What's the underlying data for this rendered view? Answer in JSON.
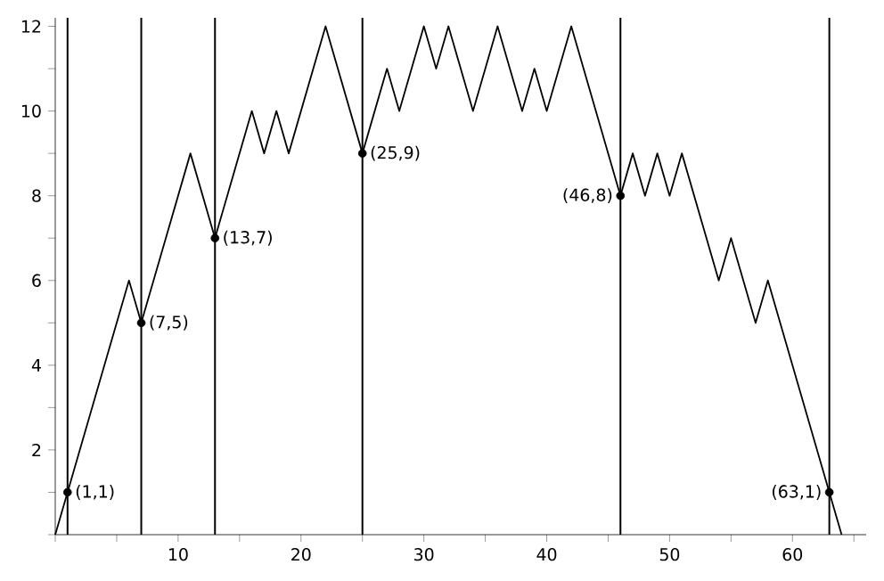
{
  "chart_data": {
    "type": "line",
    "xlim": [
      0,
      66
    ],
    "ylim": [
      0,
      12.2
    ],
    "xticks": [
      {
        "value": 0,
        "label": null
      },
      {
        "value": 5,
        "label": null
      },
      10,
      {
        "value": 15,
        "label": null
      },
      20,
      {
        "value": 25,
        "label": null
      },
      30,
      {
        "value": 35,
        "label": null
      },
      40,
      {
        "value": 45,
        "label": null
      },
      50,
      {
        "value": 55,
        "label": null
      },
      60,
      {
        "value": 65,
        "label": null
      }
    ],
    "yticks": [
      {
        "value": 0,
        "label": null
      },
      {
        "value": 1,
        "label": null
      },
      2,
      {
        "value": 3,
        "label": null
      },
      4,
      {
        "value": 5,
        "label": null
      },
      6,
      {
        "value": 7,
        "label": null
      },
      8,
      {
        "value": 9,
        "label": null
      },
      10,
      {
        "value": 11,
        "label": null
      },
      12
    ],
    "series": [
      {
        "color": "#000000",
        "marker": "none",
        "x": [
          0,
          6,
          7,
          11,
          13,
          16,
          17,
          18,
          19,
          22,
          25,
          27,
          28,
          30,
          31,
          32,
          34,
          36,
          38,
          39,
          40,
          42,
          46,
          47,
          48,
          49,
          50,
          51,
          54,
          55,
          57,
          58,
          64
        ],
        "values": [
          0,
          6,
          5,
          9,
          7,
          10,
          9,
          10,
          9,
          12,
          9,
          11,
          10,
          12,
          11,
          12,
          10,
          12,
          10,
          11,
          10,
          12,
          8,
          9,
          8,
          9,
          8,
          9,
          6,
          7,
          5,
          6,
          0
        ]
      },
      {
        "type": "scatter",
        "color": "#000000",
        "marker": "circle",
        "x": [
          1,
          7,
          13,
          25,
          46,
          63
        ],
        "values": [
          1,
          5,
          7,
          9,
          8,
          1
        ]
      }
    ],
    "ref_lines": [
      {
        "axis": "x",
        "value": 1
      },
      {
        "axis": "x",
        "value": 7
      },
      {
        "axis": "x",
        "value": 13
      },
      {
        "axis": "x",
        "value": 25
      },
      {
        "axis": "x",
        "value": 46
      },
      {
        "axis": "x",
        "value": 63
      }
    ],
    "annotations": [
      {
        "text": "(1,1)",
        "x": 1,
        "y": 1
      },
      {
        "text": "(7,5)",
        "x": 7,
        "y": 5
      },
      {
        "text": "(13,7)",
        "x": 13,
        "y": 7
      },
      {
        "text": "(25,9)",
        "x": 25,
        "y": 9
      },
      {
        "text": "(46,8)",
        "x": 46,
        "y": 8
      },
      {
        "text": "(63,1)",
        "x": 63,
        "y": 1
      }
    ]
  }
}
